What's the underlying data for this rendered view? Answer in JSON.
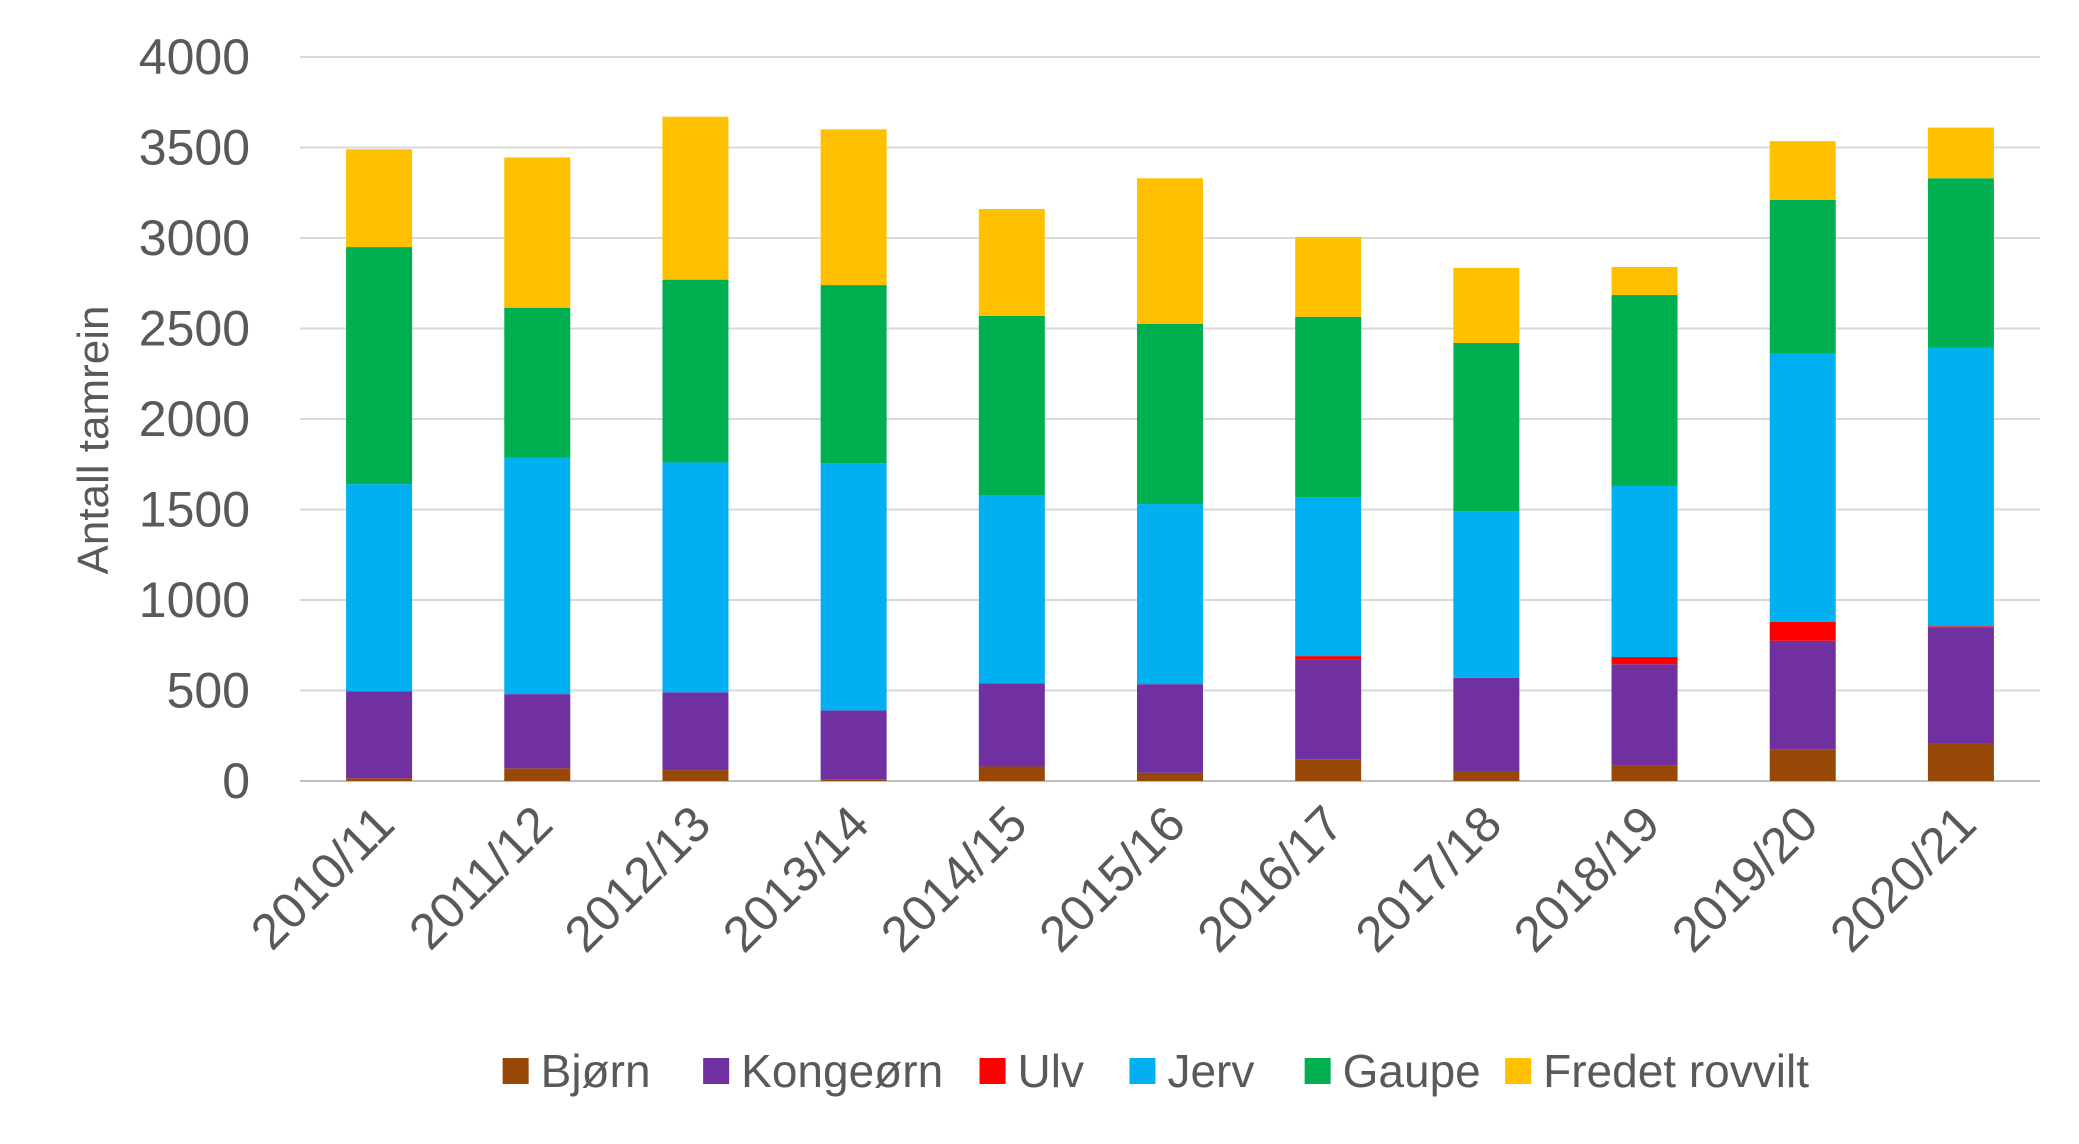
{
  "chart_data": {
    "type": "bar",
    "stacked": true,
    "categories": [
      "2010/11",
      "2011/12",
      "2012/13",
      "2013/14",
      "2014/15",
      "2015/16",
      "2016/17",
      "2017/18",
      "2018/19",
      "2019/20",
      "2020/21"
    ],
    "series": [
      {
        "name": "Bjørn",
        "color": "#974706",
        "values": [
          15,
          70,
          60,
          10,
          80,
          45,
          120,
          50,
          85,
          175,
          205
        ]
      },
      {
        "name": "Kongeørn",
        "color": "#7030A0",
        "values": [
          480,
          410,
          430,
          380,
          460,
          490,
          550,
          520,
          560,
          600,
          645
        ]
      },
      {
        "name": "Ulv",
        "color": "#FF0000",
        "values": [
          0,
          0,
          0,
          0,
          0,
          0,
          20,
          0,
          40,
          105,
          5
        ]
      },
      {
        "name": "Jerv",
        "color": "#00B0F0",
        "values": [
          1145,
          1305,
          1270,
          1365,
          1040,
          995,
          875,
          920,
          945,
          1480,
          1540
        ]
      },
      {
        "name": "Gaupe",
        "color": "#00B050",
        "values": [
          1310,
          830,
          1010,
          985,
          990,
          995,
          1000,
          930,
          1055,
          850,
          935
        ]
      },
      {
        "name": "Fredet rovvilt",
        "color": "#FFC000",
        "values": [
          540,
          830,
          900,
          860,
          590,
          805,
          440,
          415,
          155,
          325,
          280
        ]
      }
    ],
    "xlabel": "",
    "ylabel": "Antall tamrein",
    "ylim": [
      0,
      4000
    ],
    "yticks": [
      0,
      500,
      1000,
      1500,
      2000,
      2500,
      3000,
      3500,
      4000
    ],
    "grid": "horizontal",
    "legend": "bottom"
  }
}
